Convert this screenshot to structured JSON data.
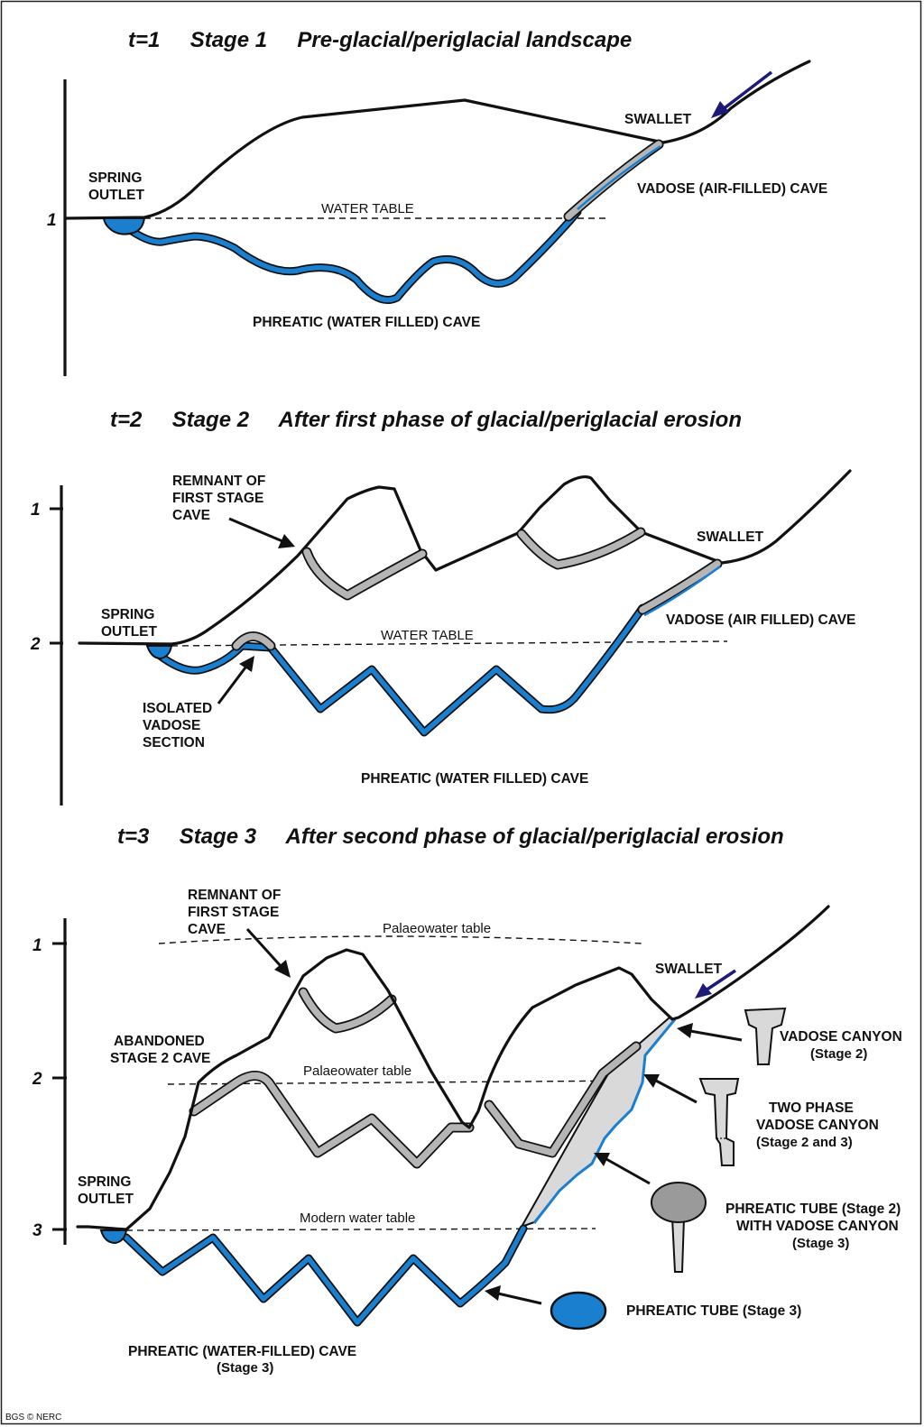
{
  "credit": "BGS © NERC",
  "stage1": {
    "title": "t=1     Stage 1     Pre-glacial/periglacial landscape",
    "axis_tick": "1",
    "spring_outlet": [
      "SPRING",
      "OUTLET"
    ],
    "swallet": "SWALLET",
    "water_table": "WATER TABLE",
    "vadose_cave": "VADOSE (AIR-FILLED) CAVE",
    "phreatic_cave": "PHREATIC (WATER FILLED) CAVE"
  },
  "stage2": {
    "title": "t=2     Stage 2     After first phase of glacial/periglacial erosion",
    "axis_ticks": [
      "1",
      "2"
    ],
    "remnant": [
      "REMNANT OF",
      "FIRST STAGE",
      "CAVE"
    ],
    "spring_outlet": [
      "SPRING",
      "OUTLET"
    ],
    "swallet": "SWALLET",
    "water_table": "WATER TABLE",
    "vadose_cave": "VADOSE (AIR FILLED) CAVE",
    "isolated": [
      "ISOLATED",
      "VADOSE",
      "SECTION"
    ],
    "phreatic_cave": "PHREATIC (WATER FILLED) CAVE"
  },
  "stage3": {
    "title": "t=3     Stage 3     After second phase of glacial/periglacial erosion",
    "axis_ticks": [
      "1",
      "2",
      "3"
    ],
    "remnant": [
      "REMNANT OF",
      "FIRST STAGE",
      "CAVE"
    ],
    "palaeo_table_1": "Palaeowater table",
    "palaeo_table_2": "Palaeowater table",
    "modern_table": "Modern water table",
    "abandoned": [
      "ABANDONED",
      "STAGE 2 CAVE"
    ],
    "spring_outlet": [
      "SPRING",
      "OUTLET"
    ],
    "swallet": "SWALLET",
    "phreatic_cave": [
      "PHREATIC (WATER-FILLED) CAVE",
      "(Stage 3)"
    ],
    "legend": [
      {
        "lines": [
          "VADOSE CANYON",
          "(Stage 2)"
        ],
        "icon": "vadose-canyon-icon"
      },
      {
        "lines": [
          "TWO PHASE",
          "VADOSE CANYON",
          "(Stage 2 and 3)"
        ],
        "icon": "two-phase-canyon-icon"
      },
      {
        "lines": [
          "PHREATIC TUBE (Stage 2)",
          "WITH VADOSE CANYON",
          "(Stage 3)"
        ],
        "icon": "tube-with-canyon-icon"
      },
      {
        "lines": [
          "PHREATIC TUBE (Stage 3)"
        ],
        "icon": "phreatic-tube-icon"
      }
    ]
  },
  "colors": {
    "phreatic_blue": "#1b7fd0",
    "vadose_grey": "#b5b5b5",
    "arrow_navy": "#1e1a78",
    "outline": "#111111"
  }
}
